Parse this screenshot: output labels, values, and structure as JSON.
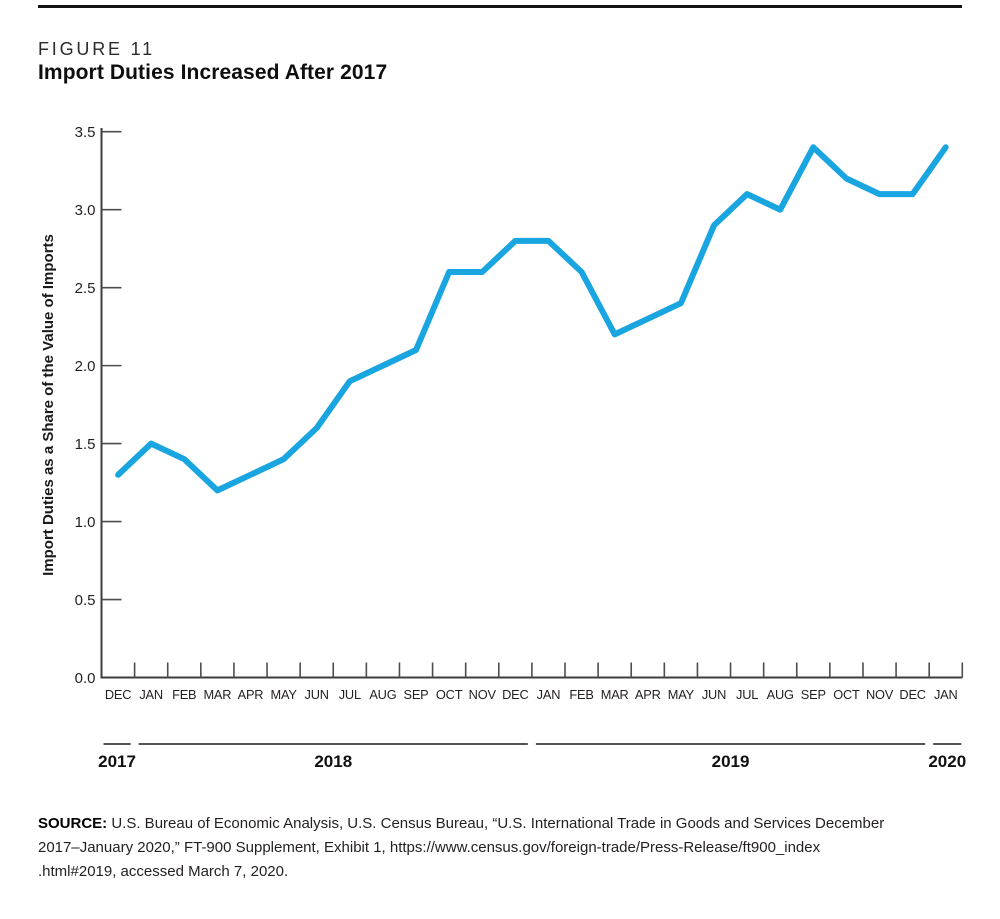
{
  "figure": {
    "kicker": "FIGURE 11",
    "title": "Import Duties Increased After 2017"
  },
  "chart_data": {
    "type": "line",
    "title": "Import Duties Increased After 2017",
    "xlabel": "",
    "ylabel": "Import Duties as a Share of the Value of Imports",
    "ylim": [
      0.0,
      3.5
    ],
    "ytick_step": 0.5,
    "ytick_labels": [
      "0.0",
      "0.5",
      "1.0",
      "1.5",
      "2.0",
      "2.5",
      "3.0",
      "3.5"
    ],
    "categories": [
      "DEC",
      "JAN",
      "FEB",
      "MAR",
      "APR",
      "MAY",
      "JUN",
      "JUL",
      "AUG",
      "SEP",
      "OCT",
      "NOV",
      "DEC",
      "JAN",
      "FEB",
      "MAR",
      "APR",
      "MAY",
      "JUN",
      "JUL",
      "AUG",
      "SEP",
      "OCT",
      "NOV",
      "DEC",
      "JAN"
    ],
    "years": [
      {
        "label": "2017",
        "start_index": 0,
        "end_index": 0
      },
      {
        "label": "2018",
        "start_index": 1,
        "end_index": 12
      },
      {
        "label": "2019",
        "start_index": 13,
        "end_index": 24
      },
      {
        "label": "2020",
        "start_index": 25,
        "end_index": 25
      }
    ],
    "series": [
      {
        "name": "Import duties as a share of the value of imports",
        "color": "#18A5E0",
        "values": [
          1.3,
          1.5,
          1.4,
          1.2,
          1.3,
          1.4,
          1.6,
          1.9,
          2.0,
          2.1,
          2.6,
          2.6,
          2.8,
          2.8,
          2.6,
          2.2,
          2.3,
          2.4,
          2.9,
          3.1,
          3.0,
          3.4,
          3.2,
          3.1,
          3.1,
          3.4
        ]
      }
    ],
    "grid": false,
    "legend_position": "none"
  },
  "source": {
    "label": "SOURCE:",
    "lines": [
      "U.S. Bureau of Economic Analysis, U.S. Census Bureau, “U.S. International Trade in Goods and Services December",
      "2017–January 2020,” FT-900 Supplement, Exhibit 1, https://www.census.gov/foreign-trade/Press-Release/ft900_index",
      ".html#2019, accessed March 7, 2020."
    ]
  },
  "colors": {
    "line": "#18A5E0",
    "axis": "#3d3d3d",
    "tick": "#4d4d4d",
    "text": "#231F20",
    "top_rule": "#121212"
  }
}
